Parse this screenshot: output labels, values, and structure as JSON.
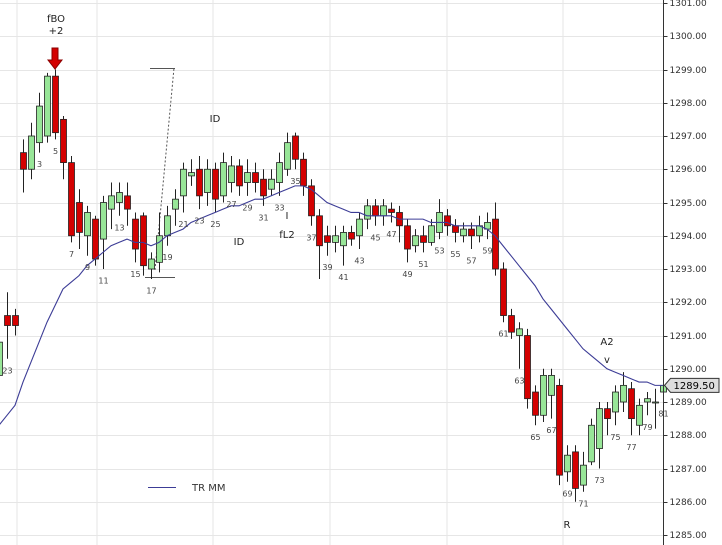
{
  "chart_data": {
    "type": "candlestick",
    "categories": [
      null,
      "23",
      null,
      null,
      null,
      "3",
      null,
      "5",
      null,
      "7",
      null,
      "9",
      null,
      "11",
      null,
      "13",
      null,
      "15",
      null,
      "17",
      null,
      "19",
      null,
      "21",
      null,
      "23",
      null,
      "25",
      null,
      "27",
      null,
      "29",
      null,
      "31",
      null,
      "33",
      null,
      "35",
      null,
      "37",
      null,
      "39",
      null,
      "41",
      null,
      "43",
      null,
      "45",
      null,
      "47",
      null,
      "49",
      null,
      "51",
      null,
      "53",
      null,
      "55",
      null,
      "57",
      null,
      "59",
      null,
      "61",
      null,
      "63",
      null,
      "65",
      null,
      "67",
      null,
      "69",
      null,
      "71",
      null,
      "73",
      null,
      "75",
      null,
      "77",
      null,
      "79",
      null,
      "81"
    ],
    "open": [
      1289.8,
      1291.6,
      1291.6,
      1296.5,
      1296.0,
      1296.8,
      1297.0,
      1298.8,
      1297.5,
      1296.2,
      1295.0,
      1294.0,
      1294.5,
      1293.9,
      1294.8,
      1295.0,
      1295.2,
      1294.5,
      1294.6,
      1293.0,
      1293.2,
      1294.0,
      1294.8,
      1295.2,
      1295.8,
      1296.0,
      1295.3,
      1296.0,
      1295.2,
      1295.6,
      1296.1,
      1295.6,
      1295.9,
      1295.7,
      1295.4,
      1295.6,
      1296.0,
      1297.0,
      1296.3,
      1295.5,
      1294.6,
      1294.0,
      1293.8,
      1293.7,
      1294.1,
      1294.0,
      1294.5,
      1294.9,
      1294.6,
      1294.8,
      1294.7,
      1294.3,
      1293.7,
      1294.0,
      1293.8,
      1294.1,
      1294.6,
      1294.3,
      1294.0,
      1294.2,
      1294.0,
      1294.2,
      1294.5,
      1293.0,
      1291.6,
      1291.0,
      1291.0,
      1289.3,
      1288.6,
      1289.2,
      1289.5,
      1286.9,
      1287.5,
      1286.5,
      1287.2,
      1287.6,
      1288.8,
      1288.7,
      1289.0,
      1289.4,
      1288.3,
      1289.0,
      1289.0,
      1289.3
    ],
    "high": [
      1291.7,
      1292.3,
      1291.8,
      1296.9,
      1297.4,
      1298.3,
      1298.9,
      1299.0,
      1297.6,
      1296.4,
      1295.4,
      1294.9,
      1294.6,
      1295.2,
      1295.6,
      1295.6,
      1295.6,
      1294.7,
      1294.7,
      1293.5,
      1294.7,
      1294.9,
      1295.4,
      1296.2,
      1296.3,
      1296.4,
      1296.3,
      1296.2,
      1296.5,
      1296.4,
      1296.3,
      1296.3,
      1296.2,
      1296.0,
      1296.0,
      1296.5,
      1297.1,
      1297.1,
      1296.5,
      1295.7,
      1294.8,
      1294.3,
      1294.3,
      1294.3,
      1294.3,
      1294.7,
      1295.1,
      1295.1,
      1295.1,
      1295.0,
      1294.9,
      1294.5,
      1294.2,
      1294.3,
      1294.5,
      1295.1,
      1294.8,
      1294.5,
      1294.4,
      1294.4,
      1294.6,
      1294.7,
      1295.0,
      1293.2,
      1291.8,
      1291.4,
      1291.2,
      1289.5,
      1290.0,
      1290.0,
      1289.7,
      1287.7,
      1287.7,
      1287.5,
      1288.5,
      1289.0,
      1289.0,
      1289.5,
      1289.9,
      1289.6,
      1289.1,
      1289.3,
      1289.4,
      1289.7
    ],
    "low": [
      1288.7,
      1290.3,
      1291.0,
      1295.3,
      1295.7,
      1296.5,
      1296.8,
      1296.9,
      1295.7,
      1293.8,
      1293.6,
      1293.4,
      1293.1,
      1293.0,
      1294.2,
      1294.6,
      1294.3,
      1293.2,
      1292.8,
      1292.7,
      1292.9,
      1293.7,
      1294.3,
      1294.7,
      1295.5,
      1294.8,
      1294.9,
      1294.7,
      1295.0,
      1295.3,
      1295.2,
      1295.2,
      1295.3,
      1294.9,
      1295.2,
      1295.2,
      1295.8,
      1296.0,
      1295.2,
      1294.3,
      1292.7,
      1293.4,
      1293.5,
      1293.1,
      1293.7,
      1293.6,
      1294.2,
      1294.3,
      1294.3,
      1294.4,
      1293.8,
      1293.2,
      1293.5,
      1293.5,
      1293.7,
      1293.9,
      1294.0,
      1293.8,
      1293.8,
      1293.6,
      1293.8,
      1293.9,
      1292.8,
      1291.4,
      1290.9,
      1290.0,
      1288.8,
      1288.3,
      1288.4,
      1288.5,
      1286.5,
      1286.6,
      1286.0,
      1286.3,
      1287.1,
      1287.0,
      1288.0,
      1288.3,
      1288.7,
      1288.0,
      1288.0,
      1288.6,
      1288.2,
      1289.0
    ],
    "close": [
      1290.8,
      1291.3,
      1291.3,
      1296.0,
      1297.0,
      1297.9,
      1298.8,
      1297.1,
      1296.2,
      1294.0,
      1294.1,
      1294.7,
      1293.3,
      1295.0,
      1295.2,
      1295.3,
      1294.8,
      1293.6,
      1293.1,
      1293.3,
      1294.0,
      1294.6,
      1295.1,
      1296.0,
      1295.9,
      1295.2,
      1296.0,
      1295.1,
      1296.2,
      1296.1,
      1295.5,
      1295.9,
      1295.6,
      1295.2,
      1295.7,
      1296.2,
      1296.8,
      1296.3,
      1295.5,
      1294.6,
      1293.7,
      1293.8,
      1294.0,
      1294.1,
      1293.9,
      1294.5,
      1294.9,
      1294.6,
      1294.9,
      1294.7,
      1294.3,
      1293.6,
      1294.0,
      1293.8,
      1294.3,
      1294.7,
      1294.3,
      1294.1,
      1294.2,
      1294.0,
      1294.3,
      1294.4,
      1293.0,
      1291.6,
      1291.1,
      1291.2,
      1289.1,
      1288.6,
      1289.8,
      1289.8,
      1286.8,
      1287.4,
      1286.4,
      1287.1,
      1288.3,
      1288.8,
      1288.5,
      1289.3,
      1289.5,
      1288.5,
      1288.9,
      1289.1,
      1289.0,
      1289.5
    ],
    "up_color": "#98e698",
    "down_color": "#d40000",
    "series": [
      {
        "name": "TR MM",
        "color": "#3c3c96",
        "values": [
          1288.3,
          1288.6,
          1288.9,
          1289.6,
          1290.2,
          1290.8,
          1291.4,
          1291.9,
          1292.4,
          1292.6,
          1292.8,
          1293.1,
          1293.3,
          1293.5,
          1293.7,
          1293.8,
          1293.9,
          1293.8,
          1293.8,
          1293.7,
          1293.8,
          1294.0,
          1294.1,
          1294.2,
          1294.4,
          1294.5,
          1294.6,
          1294.7,
          1294.8,
          1294.9,
          1294.9,
          1295.0,
          1295.1,
          1295.1,
          1295.2,
          1295.3,
          1295.4,
          1295.5,
          1295.5,
          1295.4,
          1295.2,
          1295.0,
          1294.9,
          1294.8,
          1294.7,
          1294.7,
          1294.6,
          1294.6,
          1294.6,
          1294.6,
          1294.5,
          1294.5,
          1294.5,
          1294.5,
          1294.4,
          1294.4,
          1294.4,
          1294.3,
          1294.3,
          1294.3,
          1294.3,
          1294.2,
          1294.0,
          1293.7,
          1293.4,
          1293.1,
          1292.8,
          1292.5,
          1292.1,
          1291.8,
          1291.5,
          1291.2,
          1290.9,
          1290.6,
          1290.4,
          1290.2,
          1290.0,
          1289.9,
          1289.8,
          1289.7,
          1289.6,
          1289.6,
          1289.5,
          1289.5
        ]
      }
    ],
    "ylim": [
      1285,
      1301
    ],
    "yticks": [
      {
        "value": 1285,
        "label": "1285.00"
      },
      {
        "value": 1286,
        "label": "1286.00"
      },
      {
        "value": 1287,
        "label": "1287.00"
      },
      {
        "value": 1288,
        "label": "1288.00"
      },
      {
        "value": 1289,
        "label": "1289.00"
      },
      {
        "value": 1290,
        "label": "1290.00"
      },
      {
        "value": 1291,
        "label": "1291.00"
      },
      {
        "value": 1292,
        "label": "1292.00"
      },
      {
        "value": 1293,
        "label": "1293.00"
      },
      {
        "value": 1294,
        "label": "1294.00"
      },
      {
        "value": 1295,
        "label": "1295.00"
      },
      {
        "value": 1296,
        "label": "1296.00"
      },
      {
        "value": 1297,
        "label": "1297.00"
      },
      {
        "value": 1298,
        "label": "1298.00"
      },
      {
        "value": 1299,
        "label": "1299.00"
      },
      {
        "value": 1300,
        "label": "1300.00"
      },
      {
        "value": 1301,
        "label": "1301.00"
      }
    ],
    "grid": true,
    "last_price": {
      "value": 1289.5,
      "label": "1289.50"
    },
    "annotations": [
      "fBO",
      "+2",
      "ID",
      "ID",
      "I",
      "fL2",
      "A2",
      "v",
      "R"
    ]
  }
}
